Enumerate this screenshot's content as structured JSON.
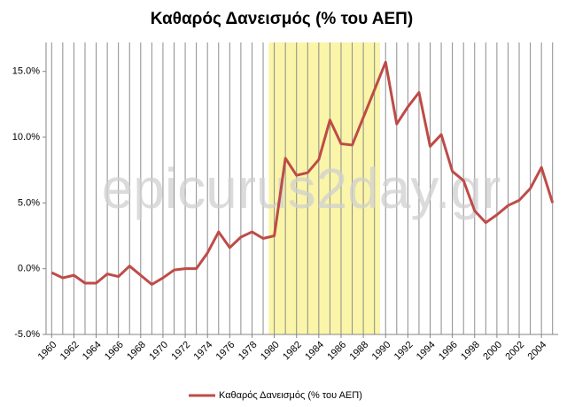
{
  "chart_data": {
    "type": "line",
    "title": "Καθαρός Δανεισμός (% του ΑΕΠ)",
    "watermark": "epicurus2day.gr",
    "x": [
      1960,
      1961,
      1962,
      1963,
      1964,
      1965,
      1966,
      1967,
      1968,
      1969,
      1970,
      1971,
      1972,
      1973,
      1974,
      1975,
      1976,
      1977,
      1978,
      1979,
      1980,
      1981,
      1982,
      1983,
      1984,
      1985,
      1986,
      1987,
      1988,
      1989,
      1990,
      1991,
      1992,
      1993,
      1994,
      1995,
      1996,
      1997,
      1998,
      1999,
      2000,
      2001,
      2002,
      2003,
      2004,
      2005
    ],
    "series": [
      {
        "name": "Καθαρός Δανεισμός (% του ΑΕΠ)",
        "color": "#be4b48",
        "values": [
          -0.3,
          -0.7,
          -0.5,
          -1.1,
          -1.1,
          -0.4,
          -0.6,
          0.2,
          -0.5,
          -1.2,
          -0.7,
          -0.1,
          0.0,
          0.0,
          1.2,
          2.8,
          1.6,
          2.4,
          2.8,
          2.3,
          2.5,
          8.4,
          7.1,
          7.3,
          8.3,
          11.3,
          9.5,
          9.4,
          11.5,
          13.6,
          15.7,
          11.0,
          12.3,
          13.4,
          9.3,
          10.2,
          7.4,
          6.7,
          4.4,
          3.5,
          4.1,
          4.8,
          5.2,
          6.1,
          7.7,
          5.0
        ]
      }
    ],
    "xlim": [
      1959.5,
      2005.5
    ],
    "xticks": [
      1960,
      1962,
      1964,
      1966,
      1968,
      1970,
      1972,
      1974,
      1976,
      1978,
      1980,
      1982,
      1984,
      1986,
      1988,
      1990,
      1992,
      1994,
      1996,
      1998,
      2000,
      2002,
      2004
    ],
    "ylim": [
      -5,
      17.2
    ],
    "yticks": [
      {
        "value": -5,
        "label": "-5.0%"
      },
      {
        "value": 0,
        "label": "0.0%"
      },
      {
        "value": 5,
        "label": "5.0%"
      },
      {
        "value": 10,
        "label": "10.0%"
      },
      {
        "value": 15,
        "label": "15.0%"
      }
    ],
    "grid": true,
    "highlight_range": [
      1979.5,
      1989.5
    ],
    "highlight_color": "#faf5a8",
    "legend": "bottom"
  }
}
